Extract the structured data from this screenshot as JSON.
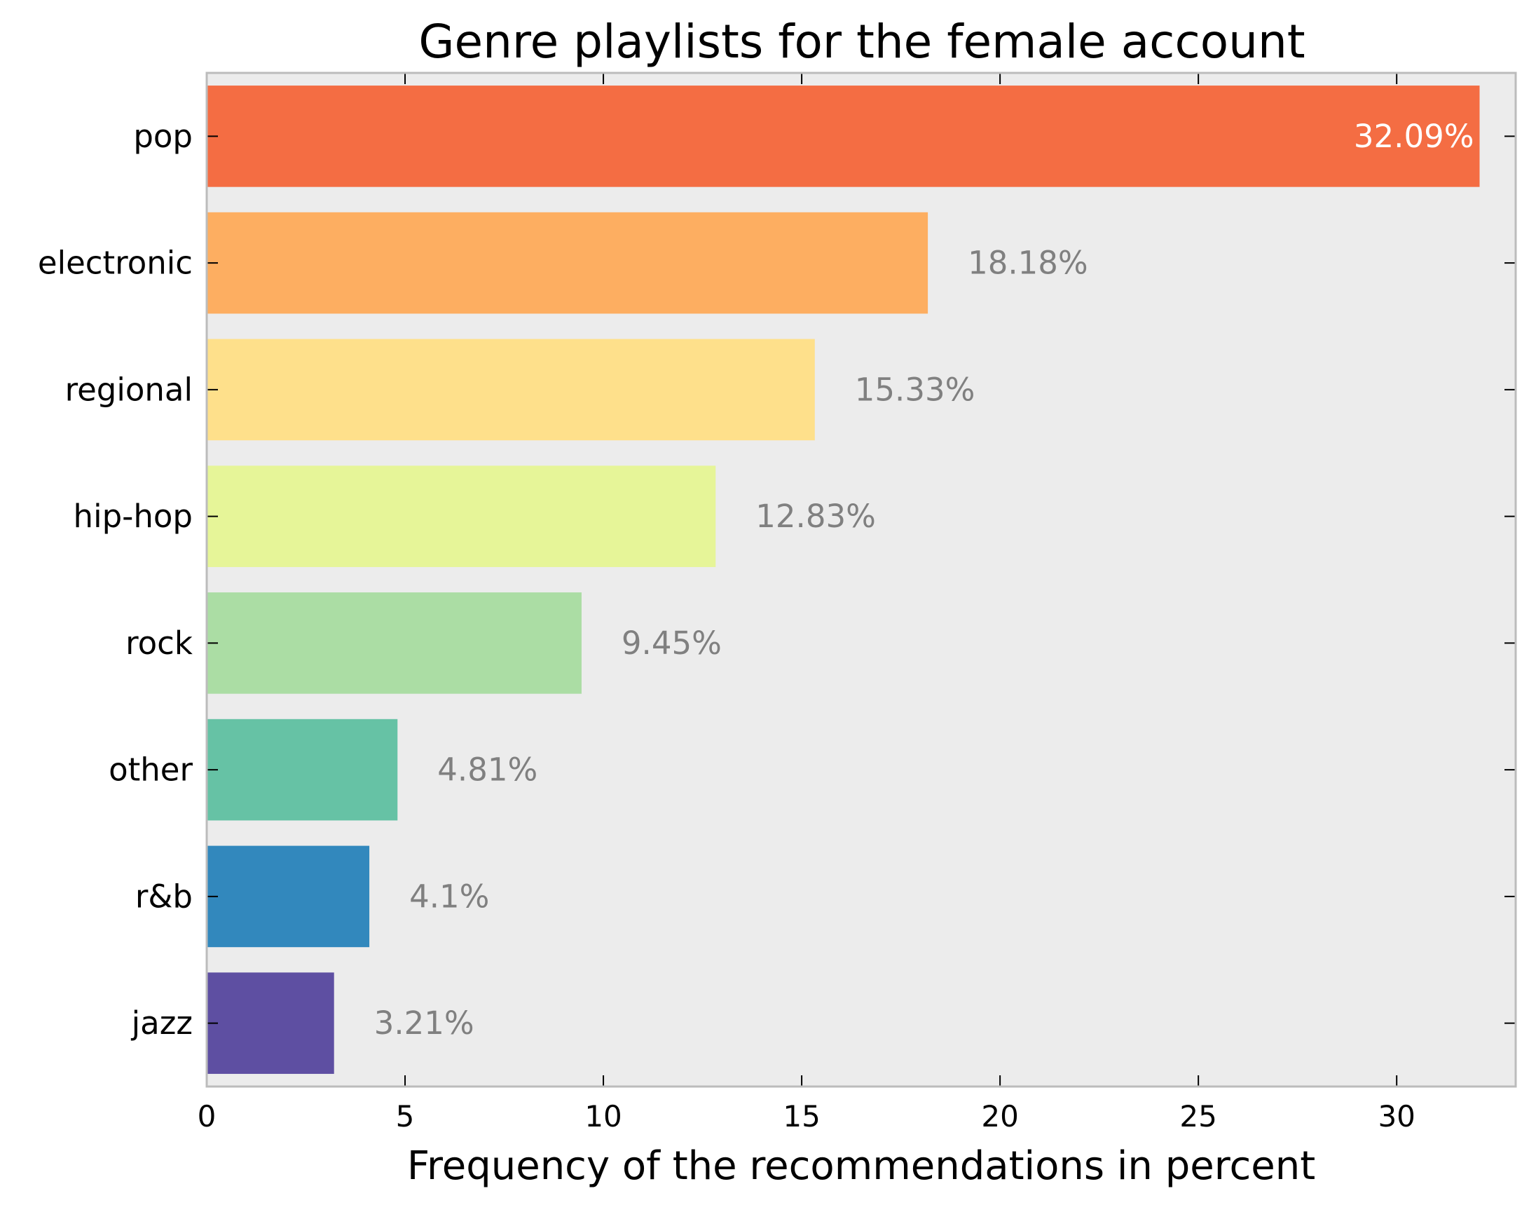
{
  "chart_data": {
    "type": "bar",
    "orientation": "horizontal",
    "title": "Genre playlists for the female account",
    "xlabel": "Frequency of the recommendations in percent",
    "ylabel": "",
    "categories": [
      "pop",
      "electronic",
      "regional",
      "hip-hop",
      "rock",
      "other",
      "r&b",
      "jazz"
    ],
    "values": [
      32.09,
      18.18,
      15.33,
      12.83,
      9.45,
      4.81,
      4.1,
      3.21
    ],
    "data_labels": [
      "32.09%",
      "18.18%",
      "15.33%",
      "12.83%",
      "9.45%",
      "4.81%",
      "4.1%",
      "3.21%"
    ],
    "colors": [
      "#f46d43",
      "#fdae61",
      "#fee08b",
      "#e6f598",
      "#abdda4",
      "#66c2a5",
      "#3288bd",
      "#5e4fa2"
    ],
    "xlim": [
      0,
      33
    ],
    "xticks": [
      0,
      5,
      10,
      15,
      20,
      25,
      30
    ],
    "xtick_labels": [
      "0",
      "5",
      "10",
      "15",
      "20",
      "25",
      "30"
    ],
    "grid": false,
    "background": "#ececec",
    "label_color_inside": "#ffffff",
    "label_color_outside": "#808080"
  }
}
